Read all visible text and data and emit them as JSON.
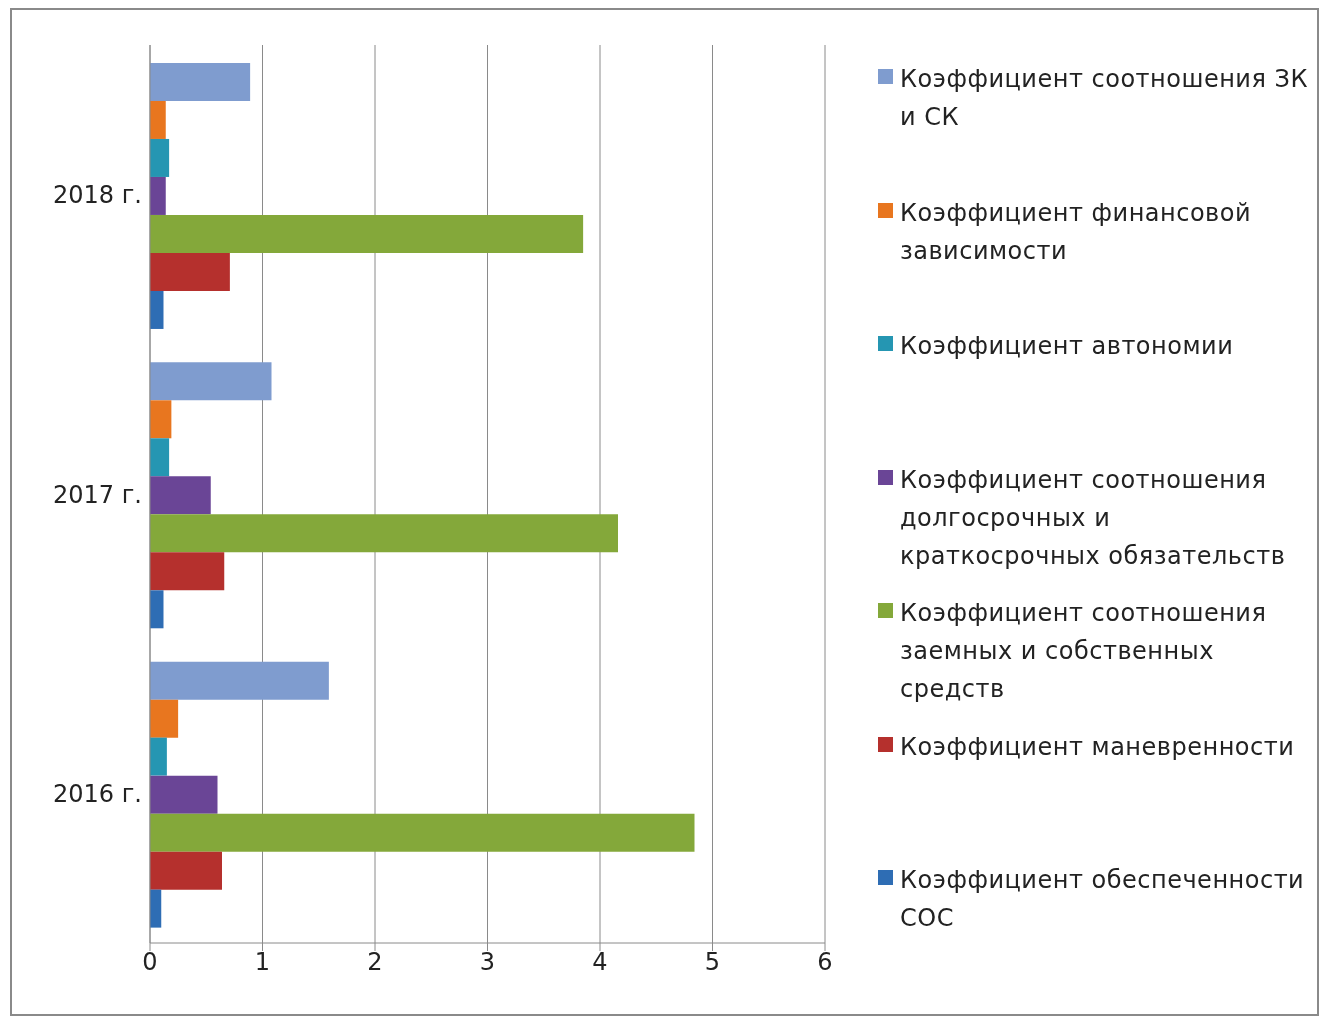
{
  "chart_data": {
    "type": "bar",
    "orientation": "horizontal",
    "categories": [
      "2018 г.",
      "2017 г.",
      "2016 г."
    ],
    "series": [
      {
        "name": "Коэффициент соотношения ЗК и СК",
        "color": "#7f9ccf",
        "values": [
          0.89,
          1.08,
          1.59
        ]
      },
      {
        "name": "Коэффициент финансовой зависимости",
        "color": "#e8761f",
        "values": [
          0.14,
          0.19,
          0.25
        ]
      },
      {
        "name": "Коэффициент автономии",
        "color": "#2596b2",
        "values": [
          0.17,
          0.17,
          0.15
        ]
      },
      {
        "name": "Коэффициент соотношения долгосрочных и краткосрочных обязательств",
        "color": "#6a4596",
        "values": [
          0.14,
          0.54,
          0.6
        ]
      },
      {
        "name": "Коэффициент соотношения заемных и собственных средств",
        "color": "#84a83a",
        "values": [
          3.85,
          4.16,
          4.84
        ]
      },
      {
        "name": "Коэффициент маневренности",
        "color": "#b5302d",
        "values": [
          0.71,
          0.66,
          0.64
        ]
      },
      {
        "name": "Коэффициент обеспеченности СОС",
        "color": "#2e6db4",
        "values": [
          0.12,
          0.12,
          0.1
        ]
      }
    ],
    "xlim": [
      0,
      6
    ],
    "xticks": [
      0,
      1,
      2,
      3,
      4,
      5,
      6
    ],
    "grid": "x",
    "legend": "right"
  }
}
